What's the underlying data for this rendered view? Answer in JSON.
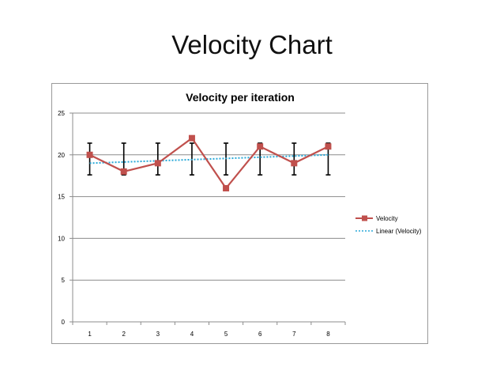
{
  "slide": {
    "title": "Velocity Chart"
  },
  "chart_data": {
    "type": "line",
    "title": "Velocity per iteration",
    "xlabel": "",
    "ylabel": "",
    "categories": [
      "1",
      "2",
      "3",
      "4",
      "5",
      "6",
      "7",
      "8"
    ],
    "x": [
      1,
      2,
      3,
      4,
      5,
      6,
      7,
      8
    ],
    "ylim": [
      0,
      25
    ],
    "yticks": [
      "0",
      "5",
      "10",
      "15",
      "20",
      "25"
    ],
    "grid": true,
    "legend_position": "right",
    "series": [
      {
        "name": "Velocity",
        "values": [
          20,
          18,
          19,
          22,
          16,
          21,
          19,
          21
        ],
        "color": "#c0504d",
        "marker": "square"
      }
    ],
    "error_bars": {
      "low": 17.6,
      "high": 21.4,
      "color": "#000000"
    },
    "trendline": {
      "name": "Linear (Velocity)",
      "type": "linear",
      "color": "#2aa9d8",
      "style": "dotted"
    }
  }
}
